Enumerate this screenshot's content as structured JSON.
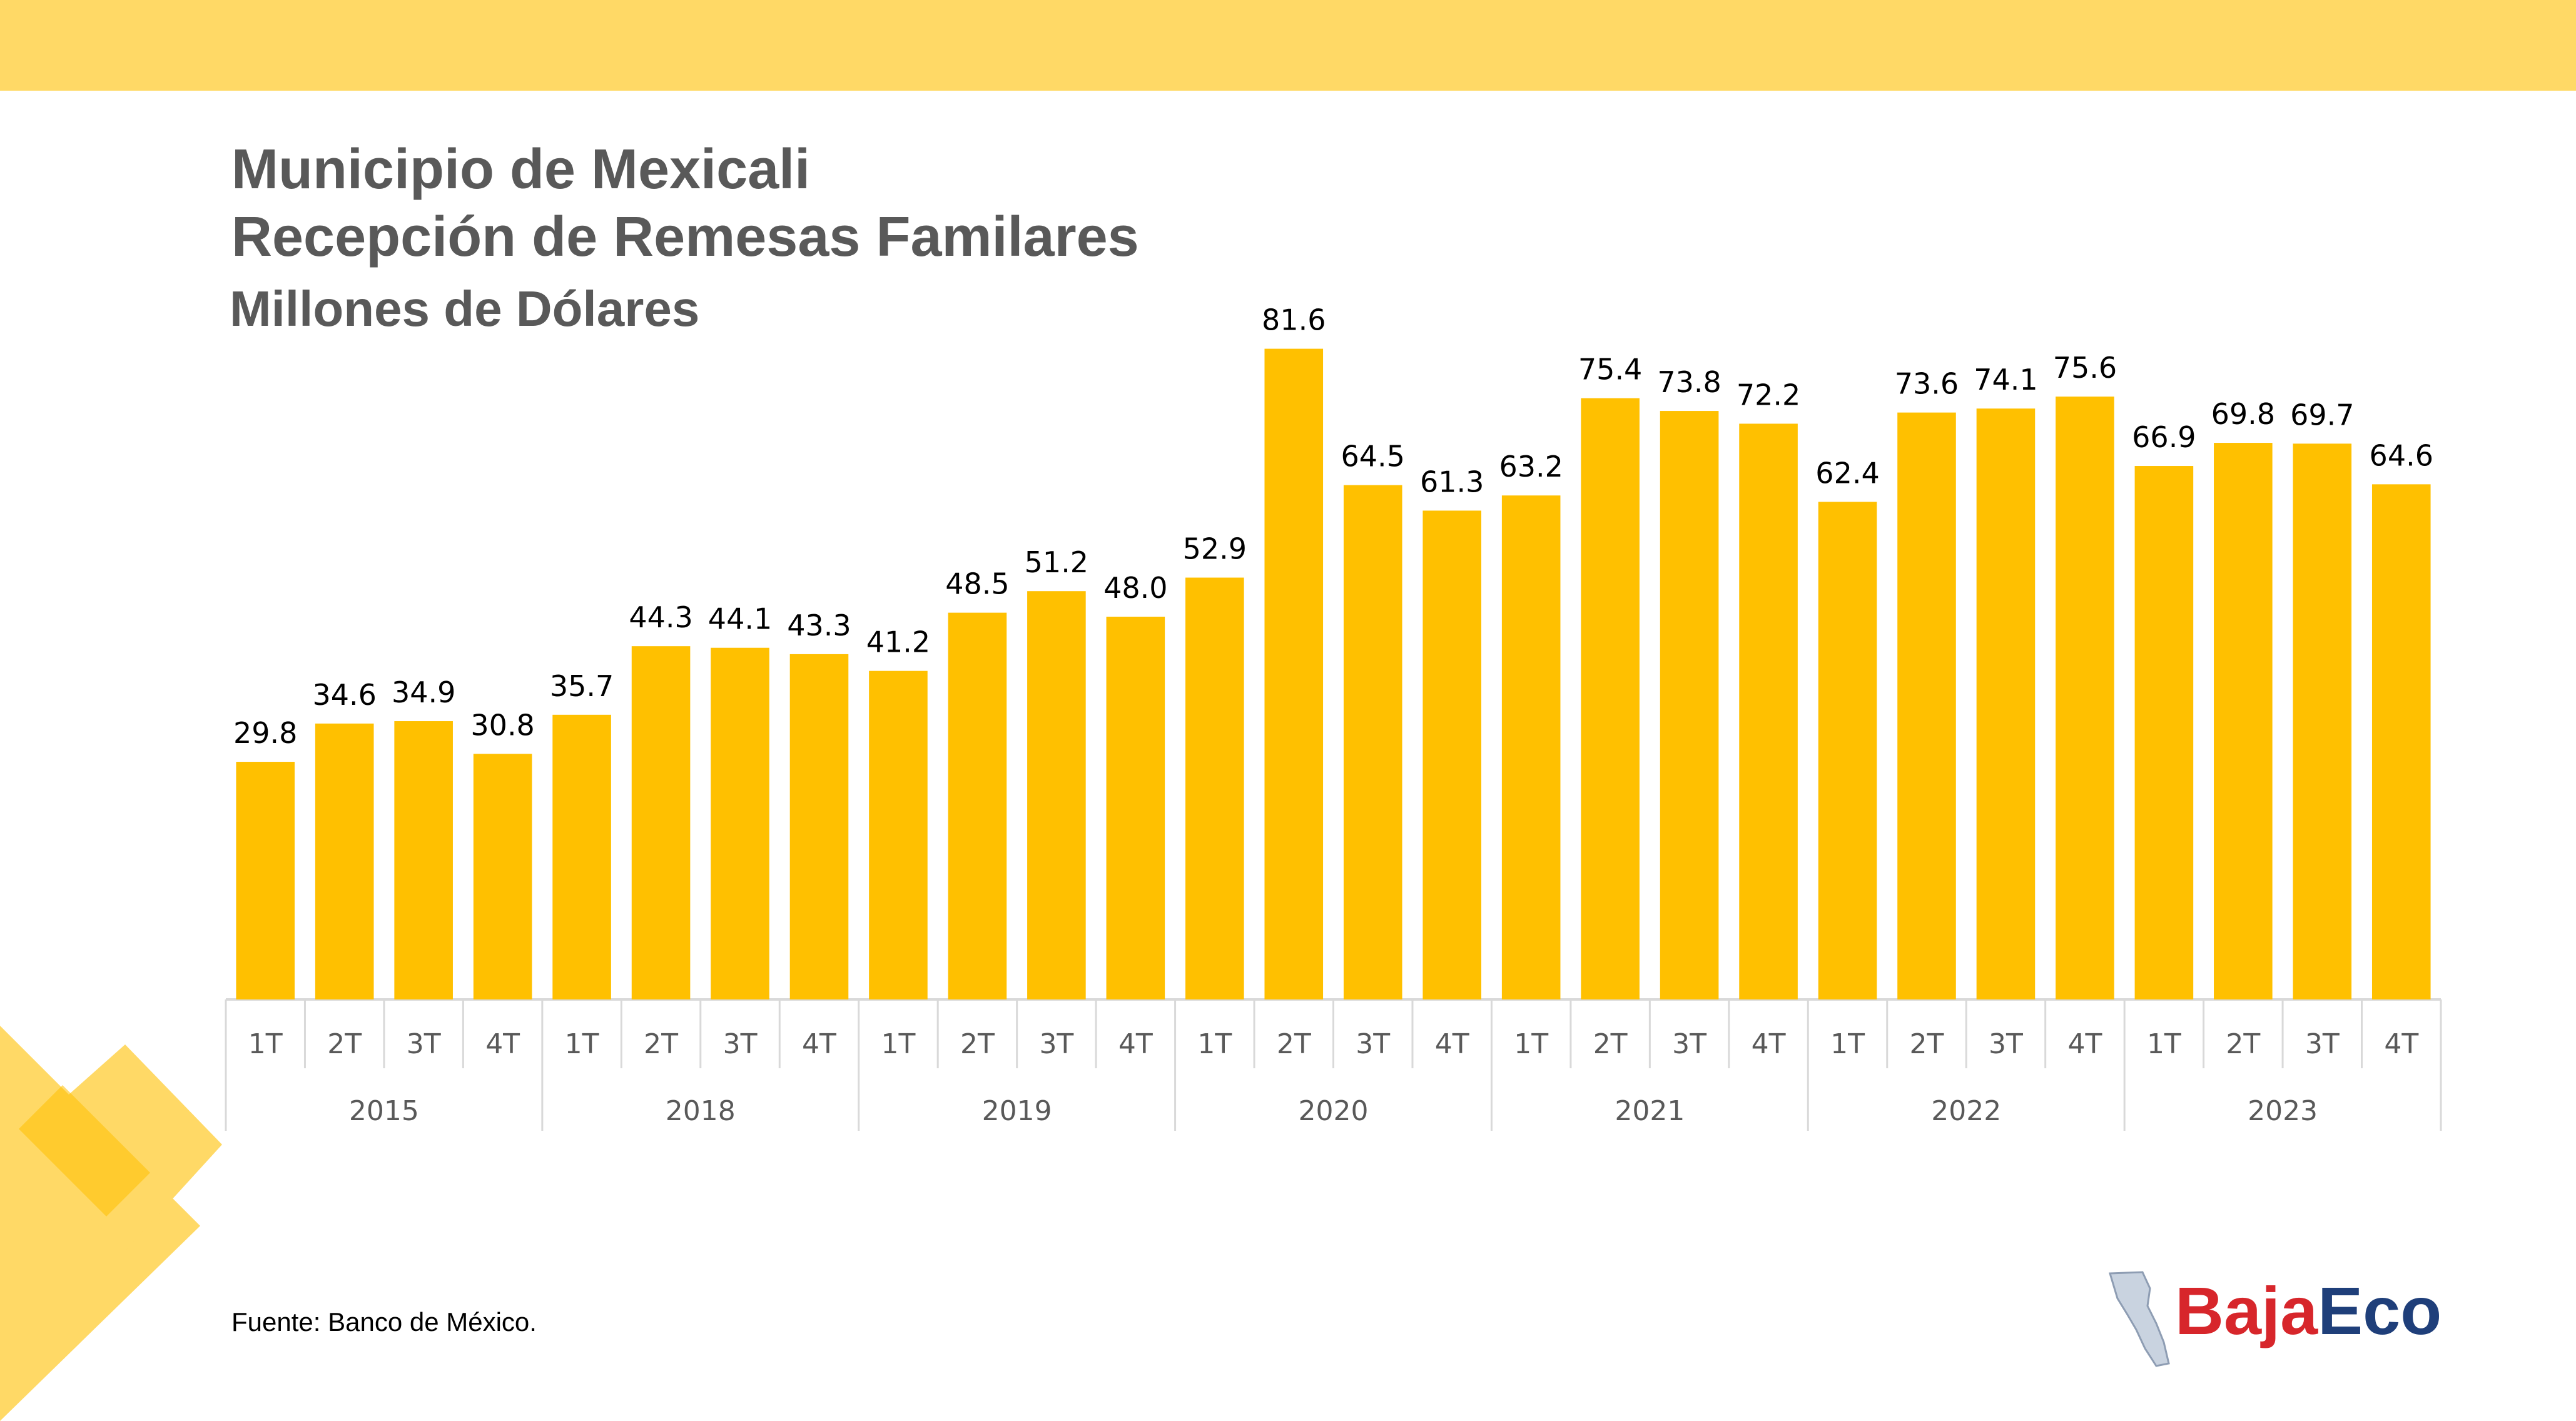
{
  "colors": {
    "bar": "#ffc000",
    "top_band": "#ffd966",
    "axis_lines": "#d9d9d9",
    "text_dark": "#595959",
    "logo_red": "#d7262b",
    "logo_blue": "#1f3f7a"
  },
  "header": {
    "title": "Municipio de Mexicali",
    "subtitle": "Recepción de Remesas Familares",
    "unit": "Millones de Dólares"
  },
  "source": "Fuente: Banco de México.",
  "logo": {
    "part1": "Baja",
    "part2": "Eco",
    "icon": "baja-california-map-icon"
  },
  "chart_data": {
    "type": "bar",
    "title": "Municipio de Mexicali",
    "subtitle": "Recepción de Remesas Familares",
    "ylabel": "Millones de Dólares",
    "ylim": [
      0,
      85
    ],
    "grid": false,
    "legend": "none",
    "data_labels": true,
    "groups": [
      {
        "year": "2015",
        "quarters": [
          "1T",
          "2T",
          "3T",
          "4T"
        ],
        "values": [
          29.8,
          34.6,
          34.9,
          30.8
        ]
      },
      {
        "year": "2018",
        "quarters": [
          "1T",
          "2T",
          "3T",
          "4T"
        ],
        "values": [
          35.7,
          44.3,
          44.1,
          43.3
        ]
      },
      {
        "year": "2019",
        "quarters": [
          "1T",
          "2T",
          "3T",
          "4T"
        ],
        "values": [
          41.2,
          48.5,
          51.2,
          48.0
        ]
      },
      {
        "year": "2020",
        "quarters": [
          "1T",
          "2T",
          "3T",
          "4T"
        ],
        "values": [
          52.9,
          81.6,
          64.5,
          61.3
        ]
      },
      {
        "year": "2021",
        "quarters": [
          "1T",
          "2T",
          "3T",
          "4T"
        ],
        "values": [
          63.2,
          75.4,
          73.8,
          72.2
        ]
      },
      {
        "year": "2022",
        "quarters": [
          "1T",
          "2T",
          "3T",
          "4T"
        ],
        "values": [
          62.4,
          73.6,
          74.1,
          75.6
        ]
      },
      {
        "year": "2023",
        "quarters": [
          "1T",
          "2T",
          "3T",
          "4T"
        ],
        "values": [
          66.9,
          69.8,
          69.7,
          64.6
        ]
      }
    ]
  }
}
